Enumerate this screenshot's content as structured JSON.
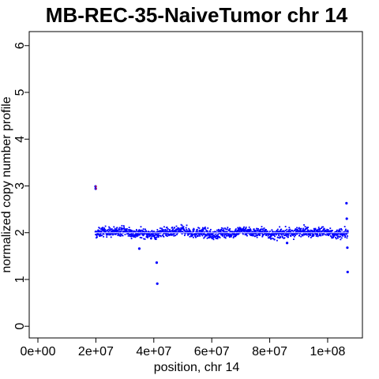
{
  "chart_data": {
    "type": "scatter",
    "title": "MB-REC-35-NaiveTumor chr 14",
    "xlabel": "position, chr 14",
    "ylabel": "normalized copy number profile",
    "xlim": [
      -3000000,
      112000000
    ],
    "ylim": [
      -0.25,
      6.3
    ],
    "x_ticks": [
      0,
      20000000,
      40000000,
      60000000,
      80000000,
      100000000
    ],
    "x_tick_labels": [
      "0e+00",
      "2e+07",
      "4e+07",
      "6e+07",
      "8e+07",
      "1e+08"
    ],
    "y_ticks": [
      0,
      1,
      2,
      3,
      4,
      5,
      6
    ],
    "y_tick_labels": [
      "0",
      "1",
      "2",
      "3",
      "4",
      "5",
      "6"
    ],
    "grid": false,
    "legend": "none",
    "colors": {
      "points": "#0000ff",
      "segment": "#ffffff",
      "outlier": "#ff0000"
    },
    "dense_band": {
      "x_start": 19800000,
      "x_end": 107000000,
      "center": 2.0,
      "spread": 0.09
    },
    "outliers": [
      {
        "x": 19900000,
        "y": 2.99
      },
      {
        "x": 19950000,
        "y": 2.94
      },
      {
        "x": 41000000,
        "y": 1.36
      },
      {
        "x": 41200000,
        "y": 0.91
      },
      {
        "x": 106500000,
        "y": 2.63
      },
      {
        "x": 106600000,
        "y": 2.3
      },
      {
        "x": 106800000,
        "y": 1.68
      },
      {
        "x": 106900000,
        "y": 1.16
      },
      {
        "x": 35000000,
        "y": 1.66
      },
      {
        "x": 86000000,
        "y": 1.78
      }
    ],
    "segments": [
      {
        "x_start": 19800000,
        "x_end": 107000000,
        "y": 2.0
      }
    ]
  }
}
